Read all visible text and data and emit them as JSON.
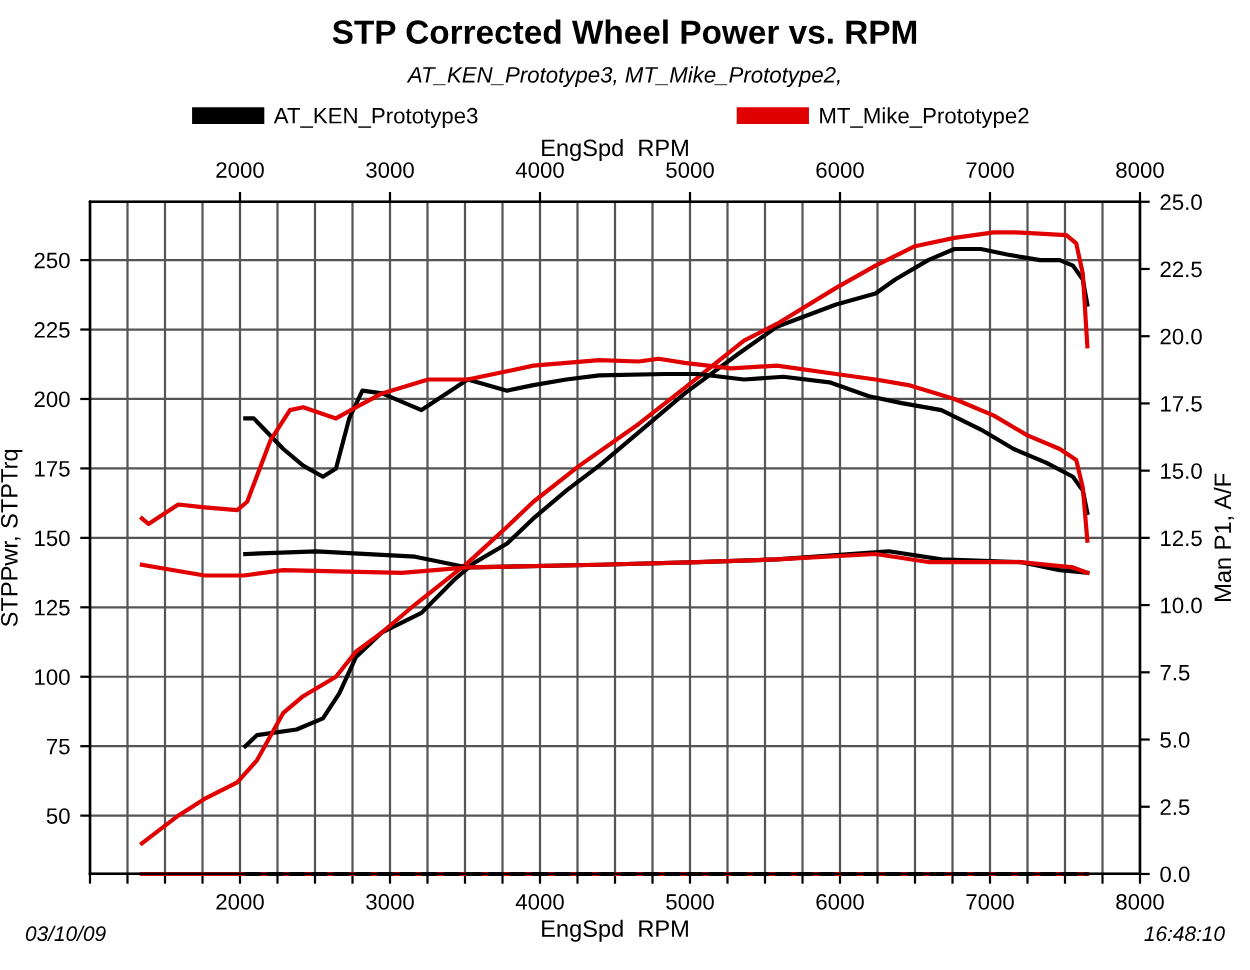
{
  "chart_data": {
    "type": "line",
    "title": "STP Corrected Wheel Power vs. RPM",
    "subtitle": "AT_KEN_Prototype3, MT_Mike_Prototype2,",
    "xlabel": "EngSpd  RPM",
    "x2label": "EngSpd  RPM",
    "ylabel": "STPPwr, STPTrq",
    "y2label": "Man P1, A/F",
    "annotations": [
      "03/10/09",
      "16:48:10"
    ],
    "xlim": [
      1000,
      8000
    ],
    "xticks": [
      {
        "value": 1000,
        "label": null
      },
      {
        "value": 1250,
        "label": null
      },
      {
        "value": 1500,
        "label": null
      },
      {
        "value": 1750,
        "label": null
      },
      2000,
      {
        "value": 2250,
        "label": null
      },
      {
        "value": 2500,
        "label": null
      },
      {
        "value": 2750,
        "label": null
      },
      3000,
      {
        "value": 3250,
        "label": null
      },
      {
        "value": 3500,
        "label": null
      },
      {
        "value": 3750,
        "label": null
      },
      4000,
      {
        "value": 4250,
        "label": null
      },
      {
        "value": 4500,
        "label": null
      },
      {
        "value": 4750,
        "label": null
      },
      5000,
      {
        "value": 5250,
        "label": null
      },
      {
        "value": 5500,
        "label": null
      },
      {
        "value": 5750,
        "label": null
      },
      6000,
      {
        "value": 6250,
        "label": null
      },
      {
        "value": 6500,
        "label": null
      },
      {
        "value": 6750,
        "label": null
      },
      7000,
      {
        "value": 7250,
        "label": null
      },
      {
        "value": 7500,
        "label": null
      },
      {
        "value": 7750,
        "label": null
      },
      8000
    ],
    "x2lim": [
      1000,
      8000
    ],
    "x2ticks": [
      2000,
      3000,
      4000,
      5000,
      6000,
      7000,
      8000
    ],
    "ylim": [
      29,
      271
    ],
    "yticks": [
      50,
      75,
      100,
      125,
      150,
      175,
      200,
      225,
      250
    ],
    "y2lim": [
      0,
      25
    ],
    "y2ticks": [
      {
        "value": 0,
        "label": "0.0"
      },
      {
        "value": 2.5,
        "label": "2.5"
      },
      {
        "value": 5,
        "label": "5.0"
      },
      {
        "value": 7.5,
        "label": "7.5"
      },
      {
        "value": 10,
        "label": "10.0"
      },
      {
        "value": 12.5,
        "label": "12.5"
      },
      {
        "value": 15,
        "label": "15.0"
      },
      {
        "value": 17.5,
        "label": "17.5"
      },
      {
        "value": 20,
        "label": "20.0"
      },
      {
        "value": 22.5,
        "label": "22.5"
      },
      {
        "value": 25,
        "label": "25.0"
      }
    ],
    "grid": true,
    "legend": "top",
    "marker": "none",
    "line_style": "solid",
    "series": [
      {
        "name": "AT_KEN_Prototype3",
        "color": "#000000",
        "x": [
          2035,
          2114,
          2377,
          2553,
          2662,
          2772,
          2947,
          3210,
          3430,
          3561,
          3781,
          3956,
          4175,
          4395,
          4658,
          4965,
          5316,
          5579,
          5974,
          6237,
          6368,
          6588,
          6763,
          6939,
          7114,
          7334,
          7465,
          7553,
          7619,
          7649
        ],
        "values": [
          75,
          79,
          81,
          85,
          94,
          107,
          116,
          123,
          135,
          141,
          148,
          157,
          167,
          176,
          188,
          202,
          216,
          226,
          234,
          238,
          243,
          250,
          254,
          254,
          252,
          250,
          250,
          248,
          243,
          234
        ]
      },
      {
        "name": "MT_Mike_Prototype2",
        "color": "#e00000",
        "x": [
          1346,
          1588,
          1763,
          1982,
          2114,
          2289,
          2421,
          2640,
          2772,
          2947,
          3167,
          3518,
          3781,
          3956,
          4263,
          4658,
          4965,
          5360,
          5579,
          5974,
          6237,
          6500,
          6763,
          7026,
          7158,
          7509,
          7575,
          7619,
          7649
        ],
        "values": [
          40,
          50,
          56,
          62,
          70,
          87,
          93,
          100,
          109,
          116,
          126,
          141,
          154,
          163,
          176,
          191,
          204,
          221,
          227,
          240,
          248,
          255,
          258,
          260,
          260,
          259,
          256,
          245,
          219
        ]
      },
      {
        "color": "#000000",
        "x": [
          2035,
          2092,
          2289,
          2421,
          2553,
          2640,
          2728,
          2816,
          2947,
          3210,
          3518,
          3781,
          3956,
          4175,
          4395,
          4833,
          5053,
          5360,
          5623,
          5930,
          6193,
          6412,
          6676,
          6939,
          7158,
          7377,
          7553,
          7619,
          7649
        ],
        "values": [
          193,
          193,
          182,
          176,
          172,
          175,
          193,
          203,
          202,
          196,
          207,
          203,
          205,
          207,
          208.5,
          209,
          209,
          207,
          208,
          206,
          201,
          198.5,
          196,
          189,
          182,
          177,
          172,
          167,
          159
        ]
      },
      {
        "color": "#e00000",
        "x": [
          1346,
          1390,
          1588,
          1763,
          1982,
          2048,
          2202,
          2333,
          2421,
          2640,
          2772,
          2947,
          3254,
          3518,
          3956,
          4395,
          4658,
          4790,
          4965,
          5272,
          5579,
          5974,
          6237,
          6456,
          6763,
          7026,
          7246,
          7465,
          7575,
          7619,
          7649
        ],
        "values": [
          157,
          155,
          162,
          161,
          160,
          163,
          185,
          196,
          197,
          193,
          197,
          202,
          207,
          207,
          212,
          214,
          213.5,
          214.5,
          213,
          211,
          212,
          209,
          207,
          205,
          200,
          194,
          187,
          182,
          178,
          168,
          149
        ]
      },
      {
        "color": "#000000",
        "axis": "y2",
        "x": [
          2035,
          2509,
          3167,
          3518,
          4395,
          5053,
          5579,
          6325,
          6676,
          7202,
          7465,
          7649
        ],
        "values": [
          11.9,
          12.0,
          11.8,
          11.4,
          11.5,
          11.6,
          11.7,
          12.0,
          11.7,
          11.6,
          11.3,
          11.2
        ]
      },
      {
        "color": "#e00000",
        "axis": "y2",
        "x": [
          1346,
          1763,
          2026,
          2289,
          3079,
          3518,
          4395,
          5053,
          5579,
          6237,
          6588,
          7202,
          7553,
          7649
        ],
        "values": [
          11.5,
          11.1,
          11.1,
          11.3,
          11.2,
          11.4,
          11.5,
          11.6,
          11.7,
          11.9,
          11.6,
          11.6,
          11.4,
          11.2
        ]
      },
      {
        "color": "#e00000",
        "axis": "y2",
        "x": [
          1346,
          7649
        ],
        "values": [
          0,
          0
        ]
      },
      {
        "color": "#000000",
        "axis": "y2",
        "line_style": "dashed",
        "x": [
          2035,
          7649
        ],
        "values": [
          0,
          0
        ]
      }
    ]
  }
}
